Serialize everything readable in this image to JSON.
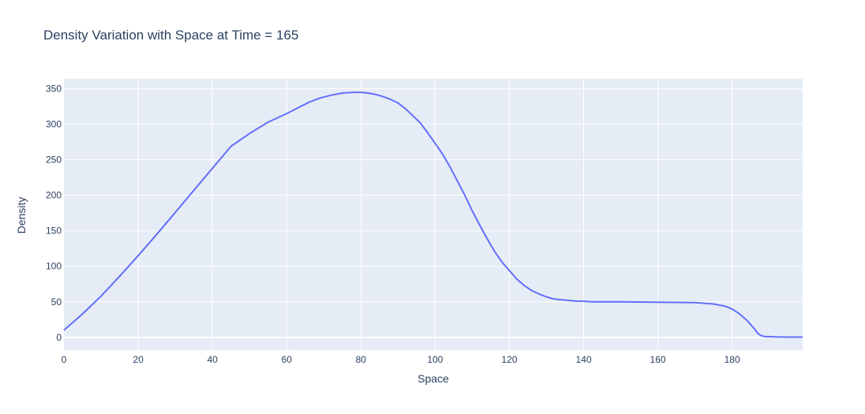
{
  "chart_data": {
    "type": "line",
    "title": "Density Variation with Space at Time = 165",
    "xlabel": "Space",
    "ylabel": "Density",
    "xlim": [
      0,
      199
    ],
    "ylim": [
      -18,
      364
    ],
    "xticks": [
      0,
      20,
      40,
      60,
      80,
      100,
      120,
      140,
      160,
      180
    ],
    "yticks": [
      0,
      50,
      100,
      150,
      200,
      250,
      300,
      350
    ],
    "grid": true,
    "colors": {
      "line": "#636efa",
      "plot_bg": "#e5ecf6",
      "grid": "#ffffff",
      "text": "#2a3f5f"
    },
    "series": [
      {
        "x": [
          0,
          5,
          10,
          15,
          20,
          25,
          30,
          35,
          40,
          45,
          50,
          55,
          60,
          63,
          66,
          69,
          72,
          75,
          78,
          80,
          82,
          84,
          86,
          88,
          90,
          92,
          94,
          96,
          98,
          100,
          102,
          104,
          106,
          108,
          110,
          112,
          114,
          116,
          118,
          120,
          122,
          124,
          126,
          128,
          130,
          132,
          134,
          136,
          138,
          140,
          142,
          150,
          160,
          170,
          175,
          178,
          180,
          182,
          184,
          186,
          187,
          188,
          189,
          190,
          192,
          195,
          199
        ],
        "y": [
          10,
          33,
          58,
          86,
          115,
          145,
          176,
          207,
          238,
          269,
          287,
          303,
          315,
          323,
          331,
          337,
          341,
          344,
          345,
          345,
          344,
          342,
          339,
          335,
          330,
          322,
          312,
          302,
          288,
          273,
          258,
          240,
          220,
          200,
          178,
          158,
          139,
          121,
          106,
          94,
          82,
          73,
          66,
          61,
          57,
          54,
          53,
          52,
          51,
          51,
          50,
          50,
          49.5,
          49,
          47,
          44,
          40,
          33,
          24,
          12,
          5,
          2,
          1,
          1,
          0.5,
          0.3,
          0.3
        ]
      }
    ]
  }
}
